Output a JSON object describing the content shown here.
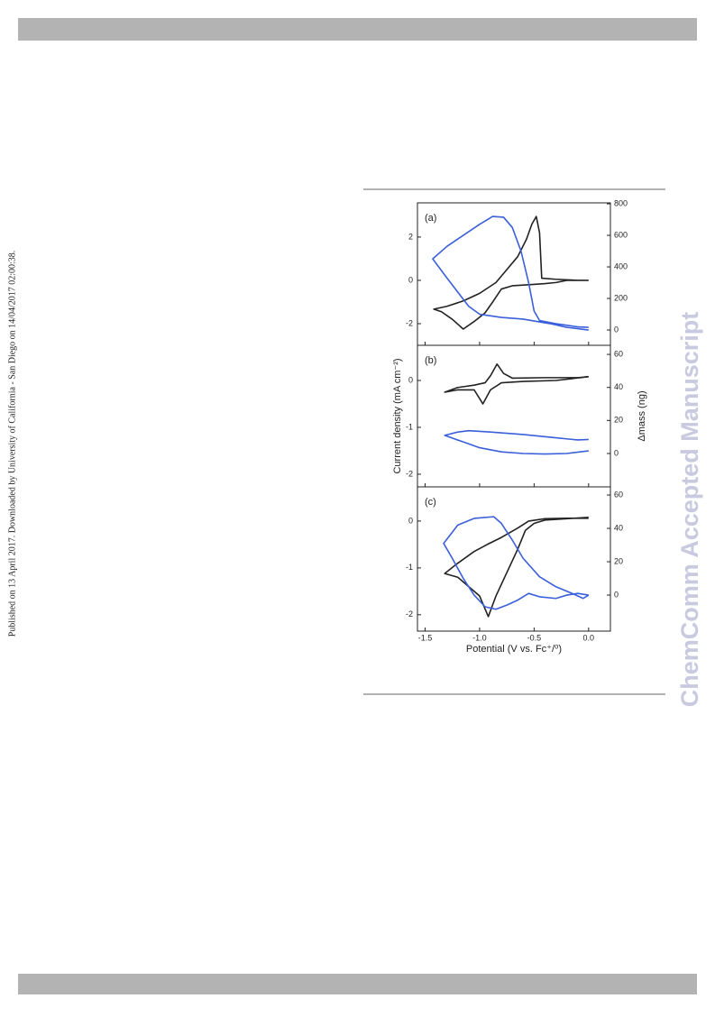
{
  "page": {
    "side_note": "Published on 13 April 2017. Downloaded by University of California - San Diego on 14/04/2017 02:00:38.",
    "watermark": "ChemComm Accepted Manuscript"
  },
  "chart_data": [
    {
      "type": "line",
      "panel_label": "(a)",
      "xlim": [
        -1.57,
        0.2
      ],
      "ylim": [
        -3.0,
        3.58
      ],
      "yticks": [
        -2,
        0,
        2
      ],
      "y2lim": [
        -97,
        806
      ],
      "y2ticks": [
        0,
        200,
        400,
        600,
        800
      ],
      "series": [
        {
          "color": "#222222",
          "x": [
            0,
            -0.2,
            -0.3,
            -0.4,
            -0.55,
            -0.7,
            -0.8,
            -0.88,
            -0.95,
            -1.05,
            -1.15,
            -1.25,
            -1.35,
            -1.42,
            -1.3,
            -1.15,
            -1.0,
            -0.85,
            -0.75,
            -0.65,
            -0.57,
            -0.52,
            -0.48,
            -0.45,
            -0.43,
            -0.3,
            -0.1,
            0
          ],
          "values": [
            0,
            0,
            -0.1,
            -0.15,
            -0.2,
            -0.25,
            -0.4,
            -1.0,
            -1.5,
            -1.9,
            -2.25,
            -1.8,
            -1.45,
            -1.33,
            -1.2,
            -0.95,
            -0.6,
            -0.1,
            0.5,
            1.1,
            1.9,
            2.6,
            2.95,
            2.2,
            0.1,
            0.05,
            0,
            0
          ]
        },
        {
          "color": "#3b5fdb",
          "axis": "y2",
          "x": [
            0,
            -0.2,
            -0.35,
            -0.45,
            -0.6,
            -0.8,
            -1.0,
            -1.1,
            -1.2,
            -1.3,
            -1.43,
            -1.3,
            -1.15,
            -1.0,
            -0.88,
            -0.78,
            -0.7,
            -0.62,
            -0.55,
            -0.5,
            -0.45,
            -0.3,
            -0.1,
            0
          ],
          "values": [
            0,
            17,
            40,
            51,
            69,
            80,
            100,
            150,
            240,
            330,
            451,
            530,
            600,
            670,
            720,
            715,
            650,
            500,
            300,
            120,
            60,
            40,
            20,
            17
          ]
        }
      ]
    },
    {
      "type": "line",
      "panel_label": "(b)",
      "ylabel": "Current density (mA cm⁻²)",
      "y2label": "Δmass (ng)",
      "xlim": [
        -1.57,
        0.2
      ],
      "ylim": [
        -2.27,
        0.75
      ],
      "yticks": [
        -2,
        -1,
        0
      ],
      "y2lim": [
        -20.2,
        65.5
      ],
      "y2ticks": [
        0,
        20,
        40,
        60
      ],
      "series": [
        {
          "color": "#222222",
          "x": [
            0,
            -0.3,
            -0.6,
            -0.8,
            -0.9,
            -0.97,
            -1.05,
            -1.2,
            -1.32,
            -1.2,
            -1.05,
            -0.95,
            -0.9,
            -0.84,
            -0.78,
            -0.7,
            -0.4,
            -0.1,
            0
          ],
          "values": [
            0.08,
            0,
            -0.02,
            -0.05,
            -0.2,
            -0.5,
            -0.2,
            -0.2,
            -0.25,
            -0.15,
            -0.1,
            -0.05,
            0.1,
            0.35,
            0.15,
            0.05,
            0.06,
            0.06,
            0.08
          ]
        },
        {
          "color": "#3b5fdb",
          "axis": "y2",
          "x": [
            0,
            -0.2,
            -0.4,
            -0.6,
            -0.8,
            -1.0,
            -1.15,
            -1.32,
            -1.2,
            -1.1,
            -0.9,
            -0.6,
            -0.3,
            -0.1,
            0
          ],
          "values": [
            1.6,
            0,
            -0.3,
            0,
            1,
            3.5,
            7,
            11,
            13,
            13.8,
            13,
            11.5,
            9.5,
            8.2,
            8.5
          ]
        }
      ]
    },
    {
      "type": "line",
      "panel_label": "(c)",
      "xlabel": "Potential (V vs. Fc⁺/⁰)",
      "xlim": [
        -1.57,
        0.2
      ],
      "xticks": [
        -1.5,
        {
          "value": -1.0,
          "label": "-1.0"
        },
        -0.5,
        {
          "value": 0.0,
          "label": "0.0"
        }
      ],
      "ylim": [
        -2.35,
        0.73
      ],
      "yticks": [
        -2,
        -1,
        0
      ],
      "y2lim": [
        -21.6,
        64.9
      ],
      "y2ticks": [
        0,
        20,
        40,
        60
      ],
      "series": [
        {
          "color": "#222222",
          "x": [
            0,
            -0.2,
            -0.4,
            -0.5,
            -0.58,
            -0.65,
            -0.75,
            -0.85,
            -0.92,
            -1.0,
            -1.1,
            -1.2,
            -1.32,
            -1.2,
            -1.05,
            -0.93,
            -0.8,
            -0.65,
            -0.55,
            -0.4,
            -0.2,
            0
          ],
          "values": [
            0.08,
            0.05,
            0.02,
            -0.05,
            -0.2,
            -0.6,
            -1.1,
            -1.6,
            -2.04,
            -1.6,
            -1.4,
            -1.2,
            -1.12,
            -0.9,
            -0.65,
            -0.5,
            -0.35,
            -0.15,
            0,
            0.05,
            0.06,
            0.06
          ]
        },
        {
          "color": "#3b5fdb",
          "axis": "y2",
          "x": [
            0,
            -0.1,
            -0.2,
            -0.3,
            -0.45,
            -0.55,
            -0.65,
            -0.75,
            -0.85,
            -0.95,
            -1.05,
            -1.15,
            -1.25,
            -1.33,
            -1.2,
            -1.05,
            -0.87,
            -0.8,
            -0.7,
            -0.6,
            -0.45,
            -0.3,
            -0.15,
            -0.05,
            0
          ],
          "values": [
            0,
            1,
            0,
            -2,
            -1,
            1,
            -3,
            -6,
            -8.5,
            -7,
            0,
            10,
            22,
            31,
            42,
            46,
            47,
            43,
            33,
            22,
            11,
            5,
            1,
            -2,
            0
          ]
        }
      ]
    }
  ]
}
